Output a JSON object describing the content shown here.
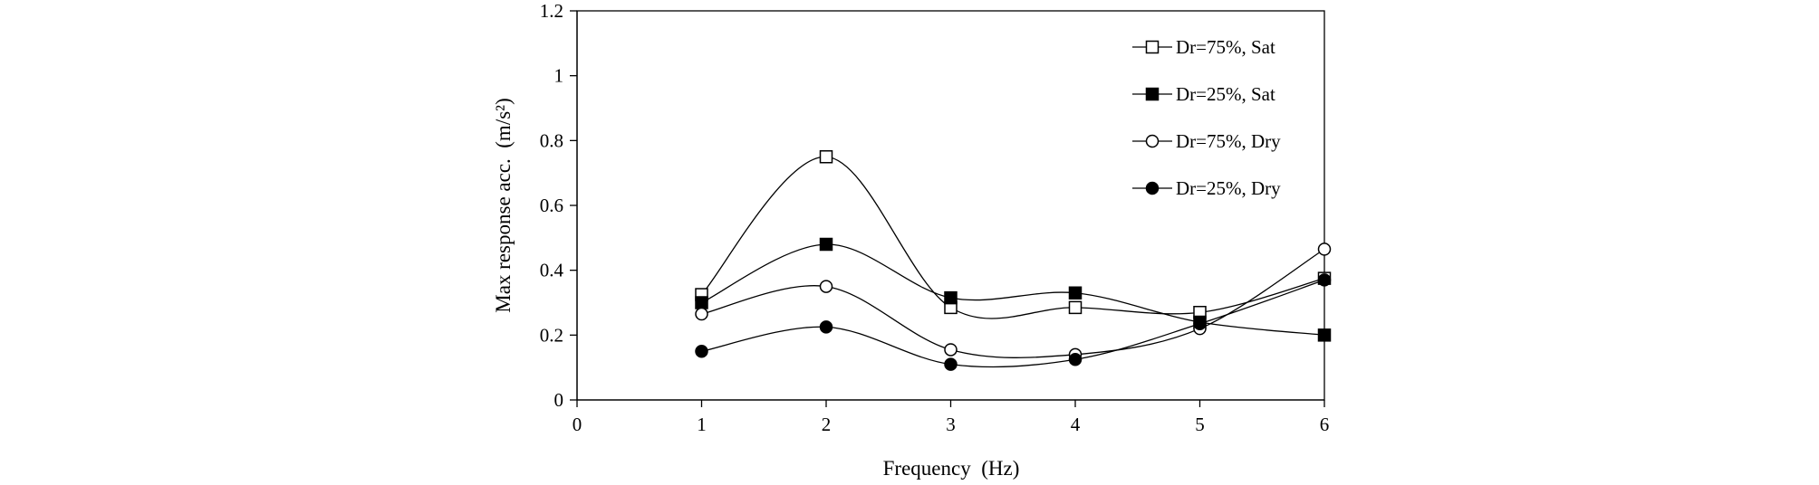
{
  "chart_data": {
    "type": "line",
    "xlabel": "Frequency  (Hz)",
    "ylabel": "Max response acc.  (m/s²)",
    "xlim": [
      0,
      6
    ],
    "ylim": [
      0,
      1.2
    ],
    "x_ticks": [
      "0",
      "1",
      "2",
      "3",
      "4",
      "5",
      "6"
    ],
    "y_ticks": [
      "0",
      "0.2",
      "0.4",
      "0.6",
      "0.8",
      "1",
      "1.2"
    ],
    "grid": false,
    "legend_position": "top-right",
    "x": [
      1,
      2,
      3,
      4,
      5,
      6
    ],
    "series": [
      {
        "name": "Dr=75%, Sat",
        "marker": "open-square",
        "values": [
          0.325,
          0.75,
          0.285,
          0.285,
          0.27,
          0.375
        ]
      },
      {
        "name": "Dr=25%, Sat",
        "marker": "filled-square",
        "values": [
          0.3,
          0.48,
          0.315,
          0.33,
          0.24,
          0.2
        ]
      },
      {
        "name": "Dr=75%, Dry",
        "marker": "open-circle",
        "values": [
          0.265,
          0.35,
          0.155,
          0.14,
          0.22,
          0.465
        ]
      },
      {
        "name": "Dr=25%, Dry",
        "marker": "filled-circle",
        "values": [
          0.15,
          0.225,
          0.11,
          0.125,
          0.235,
          0.37
        ]
      }
    ],
    "colors": {
      "line": "#000000",
      "marker_fill_open": "#ffffff",
      "marker_fill_solid": "#000000"
    }
  }
}
